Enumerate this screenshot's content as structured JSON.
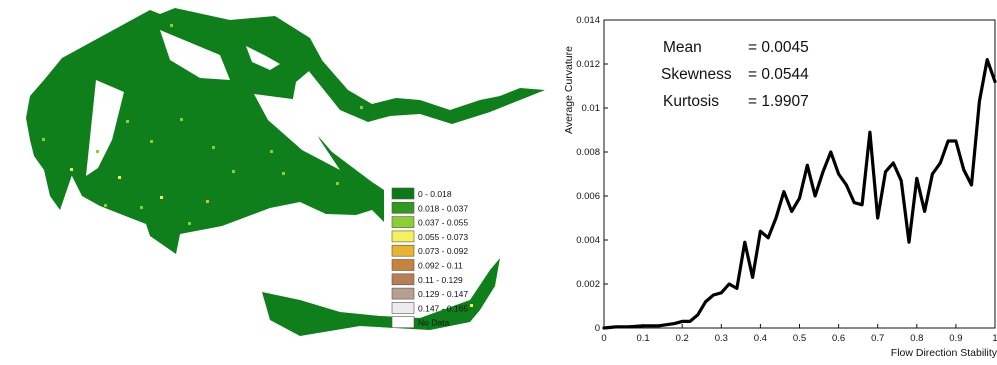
{
  "map": {
    "legend": [
      {
        "label": "0 - 0.018",
        "color": "#0b7a16"
      },
      {
        "label": "0.018 - 0.037",
        "color": "#2f9a1d"
      },
      {
        "label": "0.037 - 0.055",
        "color": "#8ccf33"
      },
      {
        "label": "0.055 - 0.073",
        "color": "#f2f25a"
      },
      {
        "label": "0.073 - 0.092",
        "color": "#e8b42e"
      },
      {
        "label": "0.092 - 0.11",
        "color": "#c9823a"
      },
      {
        "label": "0.11 - 0.129",
        "color": "#b77e55"
      },
      {
        "label": "0.129 - 0.147",
        "color": "#b8a08f"
      },
      {
        "label": "0.147 - 0.165",
        "color": "#ececec"
      },
      {
        "label": "No Data",
        "color": "#ffffff"
      }
    ]
  },
  "chart_data": {
    "type": "line",
    "title": "",
    "xlabel": "Flow Direction Stability",
    "ylabel": "Average Curvature",
    "xlim": [
      0,
      1
    ],
    "ylim": [
      0,
      0.014
    ],
    "xticks": [
      "0",
      "0.1",
      "0.2",
      "0.3",
      "0.4",
      "0.5",
      "0.6",
      "0.7",
      "0.8",
      "0.9",
      "1"
    ],
    "yticks": [
      "0",
      "0.002",
      "0.004",
      "0.006",
      "0.008",
      "0.01",
      "0.012",
      "0.014"
    ],
    "grid": false,
    "series": [
      {
        "x": [
          0.0,
          0.03,
          0.06,
          0.1,
          0.14,
          0.18,
          0.2,
          0.22,
          0.24,
          0.26,
          0.28,
          0.3,
          0.32,
          0.34,
          0.36,
          0.38,
          0.4,
          0.42,
          0.44,
          0.46,
          0.48,
          0.5,
          0.52,
          0.54,
          0.56,
          0.58,
          0.6,
          0.62,
          0.64,
          0.66,
          0.68,
          0.7,
          0.72,
          0.74,
          0.76,
          0.78,
          0.8,
          0.82,
          0.84,
          0.86,
          0.88,
          0.9,
          0.92,
          0.94,
          0.96,
          0.98,
          1.0
        ],
        "y": [
          0.0,
          5e-05,
          5e-05,
          0.0001,
          0.0001,
          0.0002,
          0.0003,
          0.0003,
          0.0006,
          0.0012,
          0.0015,
          0.0016,
          0.002,
          0.0018,
          0.0039,
          0.0023,
          0.0044,
          0.0041,
          0.005,
          0.0062,
          0.0053,
          0.0059,
          0.0074,
          0.006,
          0.0071,
          0.008,
          0.007,
          0.0065,
          0.0057,
          0.0056,
          0.0089,
          0.005,
          0.0071,
          0.0075,
          0.0067,
          0.0039,
          0.0068,
          0.0053,
          0.007,
          0.0075,
          0.0085,
          0.0085,
          0.0072,
          0.0065,
          0.0103,
          0.0122,
          0.0112
        ]
      }
    ],
    "annotations": [
      {
        "label": "Mean",
        "value": "= 0.0045"
      },
      {
        "label": "Skewness",
        "value": "= 0.0544"
      },
      {
        "label": "Kurtosis",
        "value": "= 1.9907"
      }
    ]
  }
}
